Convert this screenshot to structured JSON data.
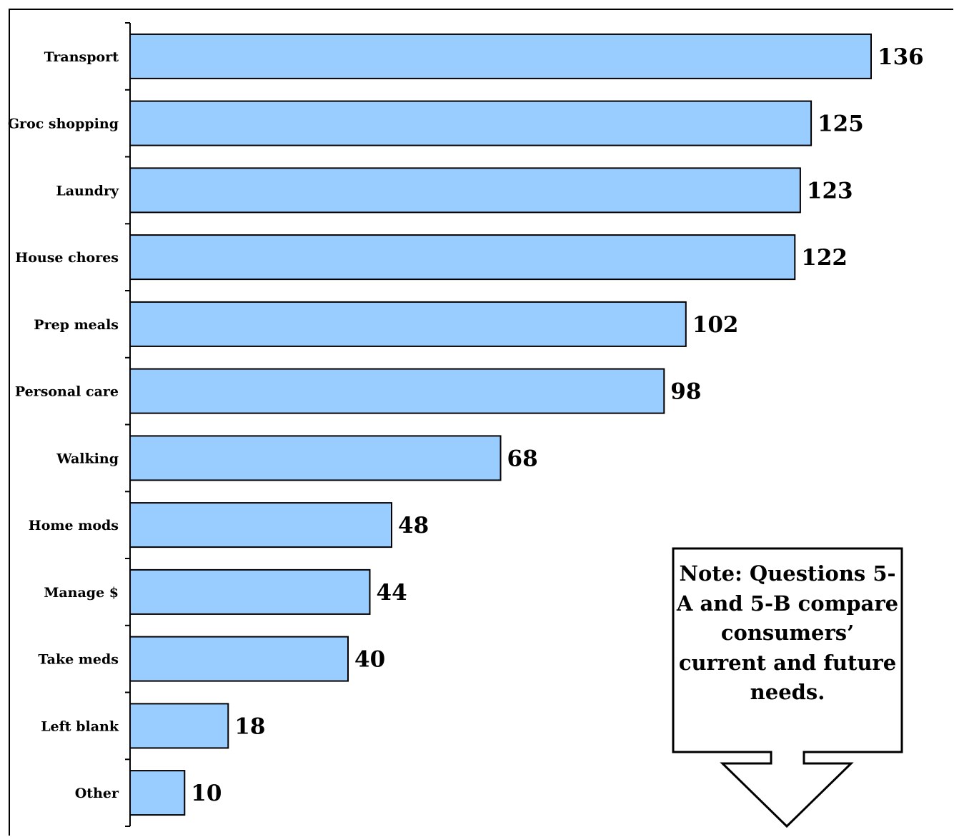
{
  "chart_data": {
    "type": "bar",
    "orientation": "horizontal",
    "categories": [
      "Transport",
      "Groc shopping",
      "Laundry",
      "House chores",
      "Prep meals",
      "Personal care",
      "Walking",
      "Home mods",
      "Manage $",
      "Take meds",
      "Left blank",
      "Other"
    ],
    "values": [
      136,
      125,
      123,
      122,
      102,
      98,
      68,
      48,
      44,
      40,
      18,
      10
    ],
    "title": "",
    "xlabel": "",
    "ylabel": "",
    "xlim": [
      0,
      145
    ],
    "grid": false,
    "bar_color": "#99ccff",
    "data_labels": true
  },
  "note": {
    "text": "Note: Questions 5-A and 5-B compare consumers’ current and future needs."
  }
}
